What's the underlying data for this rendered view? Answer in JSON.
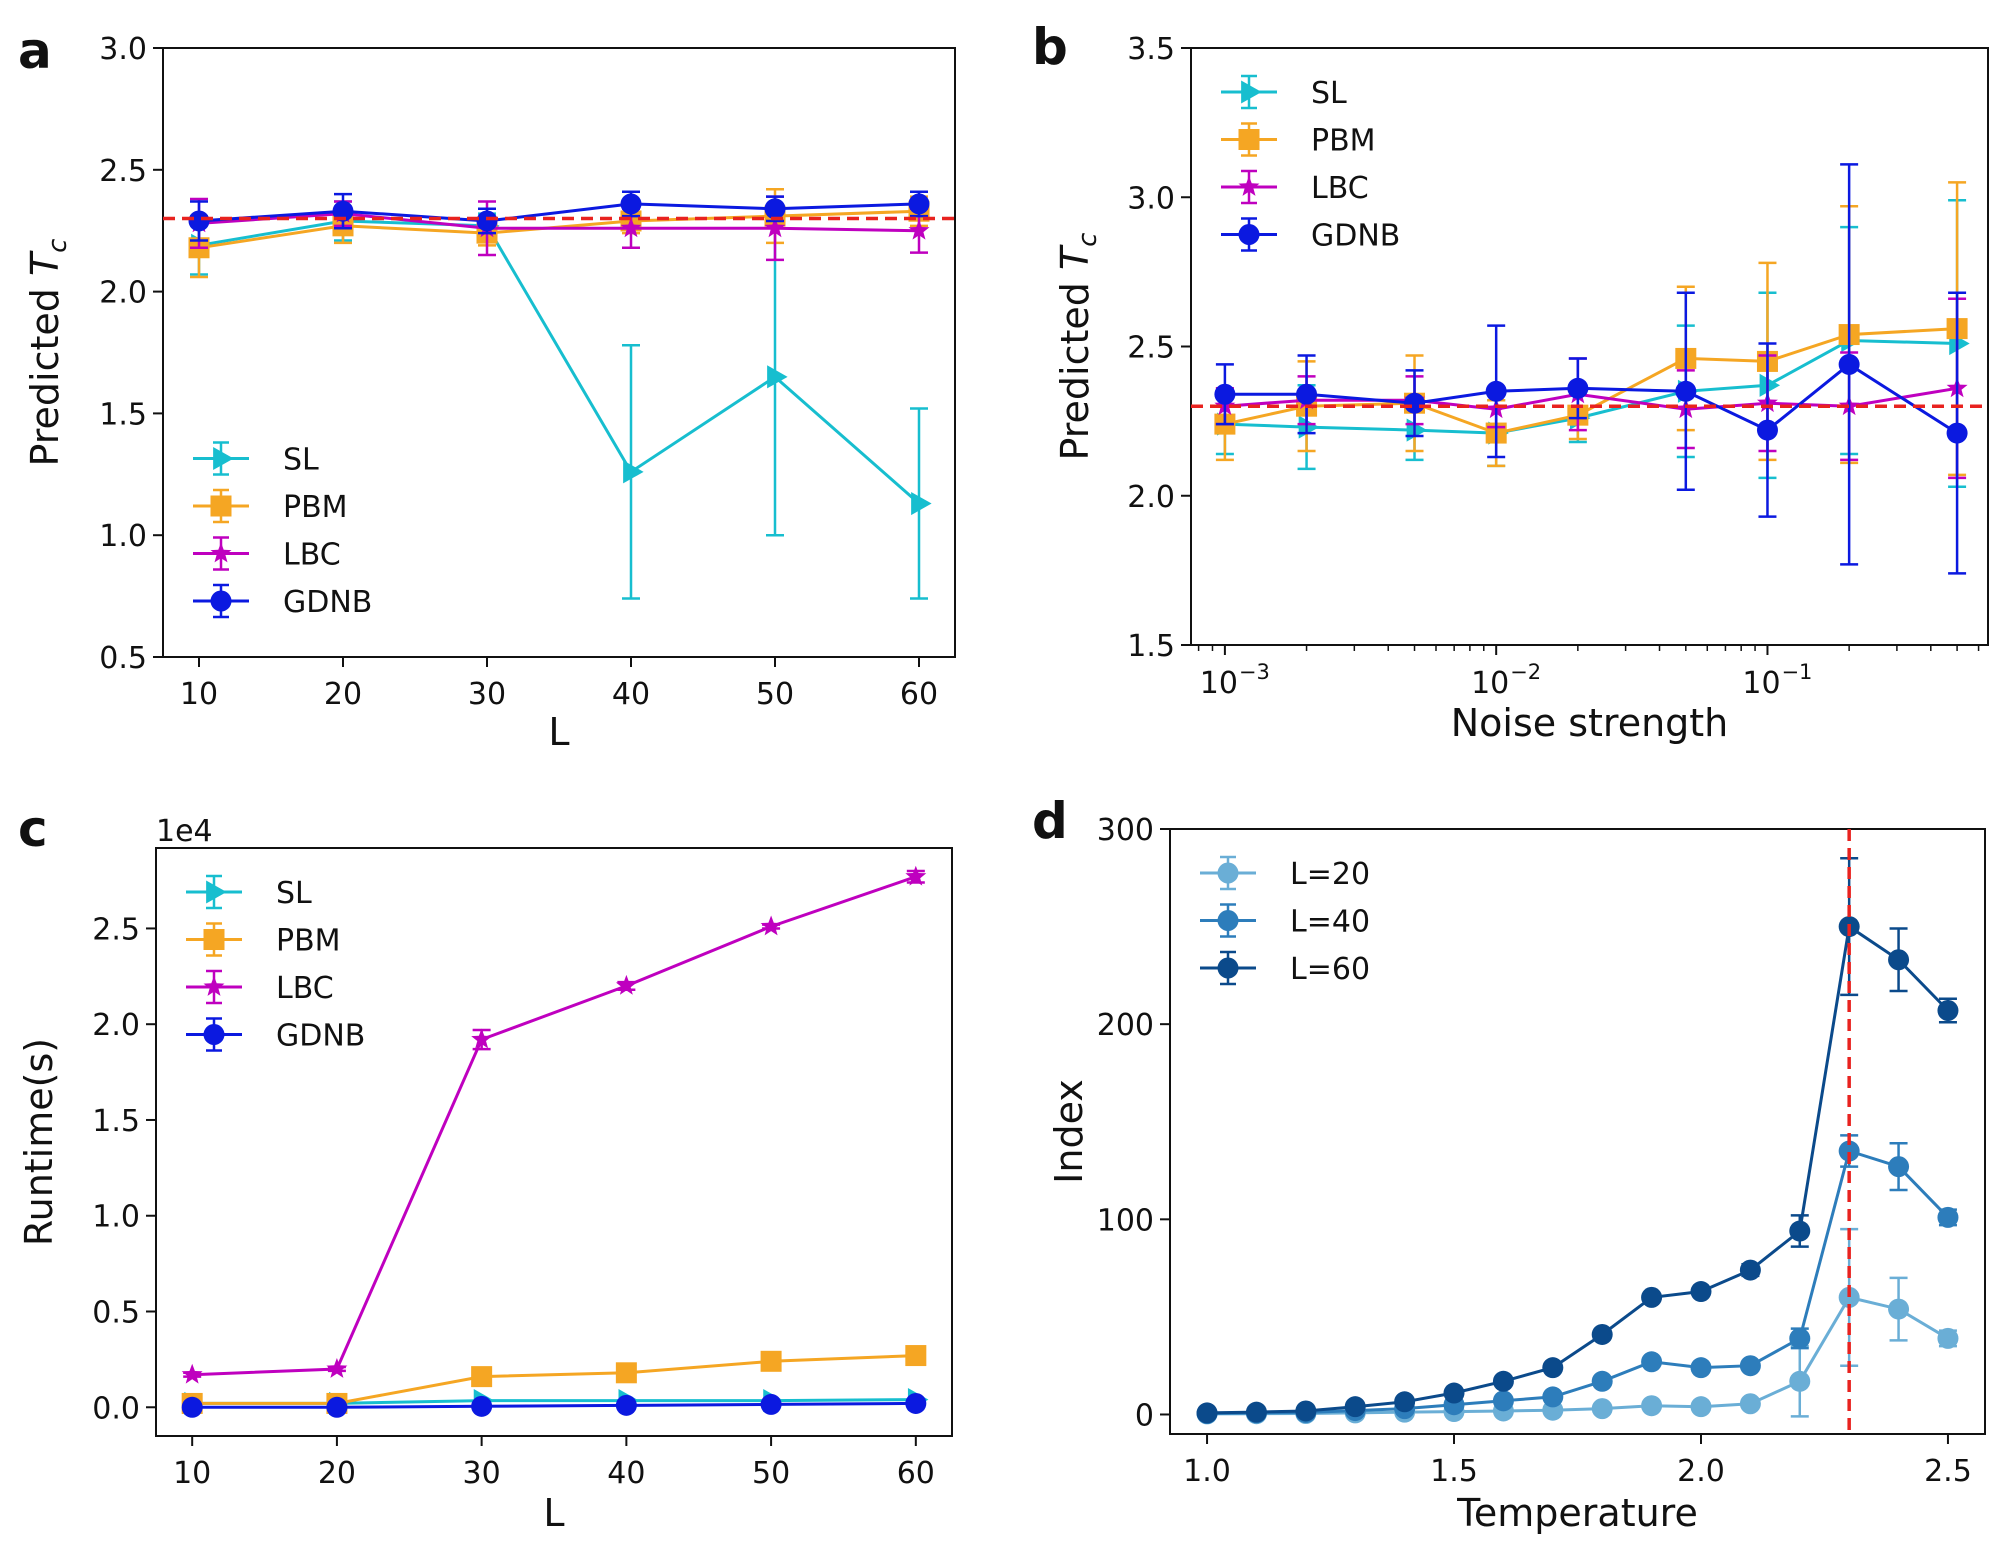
{
  "chart_data": [
    {
      "panel": "a",
      "type": "line",
      "xlabel": "L",
      "ylabel": "Predicted",
      "ylabel_symbol": "T",
      "ylabel_sub": "c",
      "x": [
        10,
        20,
        30,
        40,
        50,
        60
      ],
      "x_scale": "linear",
      "xlim": [
        7.5,
        62.5
      ],
      "ylim": [
        0.5,
        3.0
      ],
      "xticks": [
        10,
        20,
        30,
        40,
        50,
        60
      ],
      "yticks": [
        0.5,
        1.0,
        1.5,
        2.0,
        2.5,
        3.0
      ],
      "yticklabels": [
        "0.5",
        "1.0",
        "1.5",
        "2.0",
        "2.5",
        "3.0"
      ],
      "reference_line": {
        "y": 2.3,
        "color": "#e8221f",
        "style": "dashed"
      },
      "legend": "lower-left",
      "grid": false,
      "series": [
        {
          "name": "SL",
          "color": "#17becf",
          "marker": "triangle-right",
          "values": [
            2.19,
            2.29,
            2.27,
            1.26,
            1.65,
            1.13
          ],
          "err": [
            0.12,
            0.08,
            0.05,
            0.52,
            0.65,
            0.39
          ]
        },
        {
          "name": "PBM",
          "color": "#f5a623",
          "marker": "square",
          "values": [
            2.18,
            2.27,
            2.24,
            2.29,
            2.31,
            2.33
          ],
          "err": [
            0.12,
            0.07,
            0.05,
            0.05,
            0.11,
            0.06
          ]
        },
        {
          "name": "LBC",
          "color": "#bf00bf",
          "marker": "star",
          "values": [
            2.28,
            2.32,
            2.26,
            2.26,
            2.26,
            2.25
          ],
          "err": [
            0.1,
            0.05,
            0.11,
            0.08,
            0.13,
            0.09
          ]
        },
        {
          "name": "GDNB",
          "color": "#0b19e0",
          "marker": "circle",
          "values": [
            2.29,
            2.33,
            2.29,
            2.36,
            2.34,
            2.36
          ],
          "err": [
            0.08,
            0.07,
            0.05,
            0.05,
            0.05,
            0.05
          ]
        }
      ]
    },
    {
      "panel": "b",
      "type": "line",
      "xlabel": "Noise strength",
      "ylabel": "Predicted",
      "ylabel_symbol": "T",
      "ylabel_sub": "c",
      "x": [
        0.001,
        0.002,
        0.005,
        0.01,
        0.02,
        0.05,
        0.1,
        0.2,
        0.5
      ],
      "x_scale": "log",
      "xlim": [
        0.00075,
        0.65
      ],
      "ylim": [
        1.5,
        3.5
      ],
      "xticks": [
        0.001,
        0.01,
        0.1
      ],
      "xtick_base": "10",
      "xtick_exponents": [
        "−3",
        "−2",
        "−1"
      ],
      "yticks": [
        1.5,
        2.0,
        2.5,
        3.0,
        3.5
      ],
      "yticklabels": [
        "1.5",
        "2.0",
        "2.5",
        "3.0",
        "3.5"
      ],
      "reference_line": {
        "y": 2.3,
        "color": "#e8221f",
        "style": "dashed"
      },
      "legend": "upper-left",
      "grid": false,
      "series": [
        {
          "name": "SL",
          "color": "#17becf",
          "marker": "triangle-right",
          "values": [
            2.24,
            2.23,
            2.22,
            2.21,
            2.26,
            2.35,
            2.37,
            2.52,
            2.51
          ],
          "err": [
            0.1,
            0.14,
            0.1,
            0.11,
            0.08,
            0.22,
            0.31,
            0.38,
            0.48
          ]
        },
        {
          "name": "PBM",
          "color": "#f5a623",
          "marker": "square",
          "values": [
            2.24,
            2.3,
            2.31,
            2.21,
            2.27,
            2.46,
            2.45,
            2.54,
            2.56
          ],
          "err": [
            0.12,
            0.15,
            0.16,
            0.11,
            0.08,
            0.24,
            0.33,
            0.43,
            0.49
          ]
        },
        {
          "name": "LBC",
          "color": "#bf00bf",
          "marker": "star",
          "values": [
            2.3,
            2.32,
            2.32,
            2.29,
            2.34,
            2.29,
            2.31,
            2.3,
            2.36
          ],
          "err": [
            0.06,
            0.08,
            0.08,
            0.06,
            0.12,
            0.13,
            0.16,
            0.18,
            0.3
          ]
        },
        {
          "name": "GDNB",
          "color": "#0b19e0",
          "marker": "circle",
          "values": [
            2.34,
            2.34,
            2.31,
            2.35,
            2.36,
            2.35,
            2.22,
            2.44,
            2.21
          ],
          "err": [
            0.1,
            0.13,
            0.11,
            0.22,
            0.1,
            0.33,
            0.29,
            0.67,
            0.47
          ]
        }
      ]
    },
    {
      "panel": "c",
      "type": "line",
      "xlabel": "L",
      "ylabel": "Runtime(s)",
      "offset_label": "1e4",
      "x": [
        10,
        20,
        30,
        40,
        50,
        60
      ],
      "x_scale": "linear",
      "xlim": [
        7.5,
        62.5
      ],
      "ylim": [
        -0.15,
        2.92
      ],
      "xticks": [
        10,
        20,
        30,
        40,
        50,
        60
      ],
      "yticks": [
        0.0,
        0.5,
        1.0,
        1.5,
        2.0,
        2.5
      ],
      "yticklabels": [
        "0.0",
        "0.5",
        "1.0",
        "1.5",
        "2.0",
        "2.5"
      ],
      "legend": "upper-left",
      "grid": false,
      "series": [
        {
          "name": "SL",
          "color": "#17becf",
          "marker": "triangle-right",
          "values": [
            0.02,
            0.02,
            0.035,
            0.035,
            0.035,
            0.04
          ],
          "err": [
            0,
            0,
            0,
            0,
            0,
            0
          ]
        },
        {
          "name": "PBM",
          "color": "#f5a623",
          "marker": "square",
          "values": [
            0.02,
            0.02,
            0.16,
            0.18,
            0.24,
            0.27
          ],
          "err": [
            0,
            0,
            0,
            0,
            0,
            0
          ]
        },
        {
          "name": "LBC",
          "color": "#bf00bf",
          "marker": "star",
          "values": [
            0.17,
            0.2,
            1.92,
            2.2,
            2.51,
            2.77
          ],
          "err": [
            0.01,
            0.01,
            0.05,
            0.02,
            0.01,
            0.03
          ]
        },
        {
          "name": "GDNB",
          "color": "#0b19e0",
          "marker": "circle",
          "values": [
            0.0,
            0.0,
            0.005,
            0.01,
            0.015,
            0.02
          ],
          "err": [
            0,
            0,
            0,
            0,
            0,
            0
          ]
        }
      ]
    },
    {
      "panel": "d",
      "type": "line",
      "xlabel": "Temperature",
      "ylabel": "Index",
      "x": [
        1.0,
        1.1,
        1.2,
        1.3,
        1.4,
        1.5,
        1.6,
        1.7,
        1.8,
        1.9,
        2.0,
        2.1,
        2.2,
        2.3,
        2.4,
        2.5
      ],
      "x_scale": "linear",
      "xlim": [
        0.925,
        2.575
      ],
      "ylim": [
        -10,
        300
      ],
      "xticks": [
        1.0,
        1.5,
        2.0,
        2.5
      ],
      "xticklabels": [
        "1.0",
        "1.5",
        "2.0",
        "2.5"
      ],
      "yticks": [
        0,
        100,
        200,
        300
      ],
      "yticklabels": [
        "0",
        "100",
        "200",
        "300"
      ],
      "reference_vline": {
        "x": 2.3,
        "color": "#e8221f",
        "style": "dashed"
      },
      "legend": "upper-left",
      "grid": false,
      "series": [
        {
          "name": "L=20",
          "color": "#6aaed6",
          "marker": "circle",
          "values": [
            0.3,
            0.4,
            0.5,
            0.8,
            1.2,
            1.5,
            1.8,
            2.2,
            3,
            4.5,
            4,
            5.5,
            17,
            60,
            54,
            39
          ],
          "err": [
            0,
            0,
            0,
            0,
            0,
            0,
            0,
            0,
            0,
            0,
            0,
            0,
            18,
            35,
            16,
            4
          ]
        },
        {
          "name": "L=40",
          "color": "#2d7dbb",
          "marker": "circle",
          "values": [
            0.5,
            0.8,
            1,
            2,
            3,
            5,
            7,
            9,
            17,
            27,
            24,
            25,
            39,
            135,
            127,
            101
          ],
          "err": [
            0,
            0,
            0,
            0,
            0,
            0,
            0,
            0,
            0,
            0,
            0,
            0,
            5,
            8,
            12,
            4
          ]
        },
        {
          "name": "L=60",
          "color": "#0b4a8b",
          "marker": "circle",
          "values": [
            0.8,
            1.2,
            1.8,
            4,
            6.5,
            11,
            17,
            24,
            41,
            60,
            63,
            74,
            94,
            250,
            233,
            207
          ],
          "err": [
            0,
            0,
            0,
            0,
            0,
            0,
            0,
            0,
            0,
            0,
            0,
            3,
            8,
            35,
            16,
            6
          ]
        }
      ]
    }
  ],
  "panel_labels": [
    "a",
    "b",
    "c",
    "d"
  ]
}
